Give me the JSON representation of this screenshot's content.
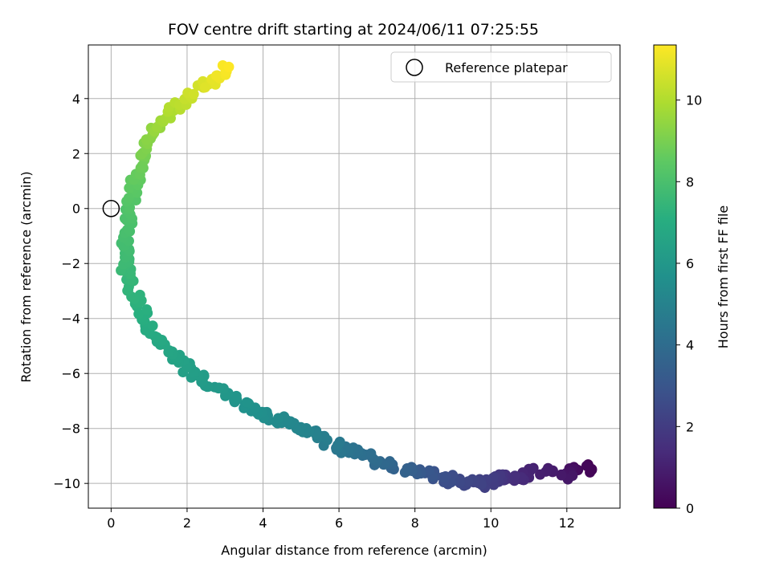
{
  "chart_data": {
    "type": "scatter",
    "title": "FOV centre drift starting at 2024/06/11 07:25:55",
    "xlabel": "Angular distance from reference (arcmin)",
    "ylabel": "Rotation from reference (arcmin)",
    "xlim": [
      -0.6,
      13.4
    ],
    "ylim": [
      -10.9,
      5.95
    ],
    "xticks": [
      0,
      2,
      4,
      6,
      8,
      10,
      12
    ],
    "yticks": [
      -10,
      -8,
      -6,
      -4,
      -2,
      0,
      2,
      4
    ],
    "xtick_labels": [
      "0",
      "2",
      "4",
      "6",
      "8",
      "10",
      "12"
    ],
    "ytick_labels": [
      "−10",
      "−8",
      "−6",
      "−4",
      "−2",
      "0",
      "2",
      "4"
    ],
    "grid": true,
    "colorbar": {
      "label": "Hours from first FF file",
      "colormap": "viridis",
      "range": [
        0,
        11.35
      ],
      "ticks": [
        0,
        2,
        4,
        6,
        8,
        10
      ],
      "tick_labels": [
        "0",
        "2",
        "4",
        "6",
        "8",
        "10"
      ]
    },
    "legend": {
      "position": "top-right",
      "entries": [
        {
          "label": "Reference platepar",
          "marker": "open-circle",
          "x": 0,
          "y": 0
        }
      ]
    },
    "path": [
      [
        12.7,
        -9.4,
        0.0
      ],
      [
        12.2,
        -9.5,
        0.35
      ],
      [
        12.0,
        -9.7,
        0.7
      ],
      [
        11.1,
        -9.5,
        1.05
      ],
      [
        10.7,
        -9.9,
        1.4
      ],
      [
        10.3,
        -9.7,
        1.75
      ],
      [
        9.9,
        -10.0,
        2.1
      ],
      [
        9.6,
        -10.0,
        2.3
      ],
      [
        9.0,
        -9.9,
        2.55
      ],
      [
        8.5,
        -9.7,
        2.9
      ],
      [
        8.0,
        -9.6,
        3.3
      ],
      [
        7.5,
        -9.4,
        3.6
      ],
      [
        7.0,
        -9.2,
        3.9
      ],
      [
        6.5,
        -8.9,
        4.2
      ],
      [
        6.0,
        -8.7,
        4.5
      ],
      [
        5.5,
        -8.3,
        4.8
      ],
      [
        5.0,
        -8.0,
        5.1
      ],
      [
        4.5,
        -7.7,
        5.3
      ],
      [
        4.0,
        -7.5,
        5.55
      ],
      [
        3.5,
        -7.1,
        5.75
      ],
      [
        3.0,
        -6.8,
        5.95
      ],
      [
        2.5,
        -6.3,
        6.15
      ],
      [
        2.0,
        -5.8,
        6.35
      ],
      [
        1.6,
        -5.3,
        6.55
      ],
      [
        1.3,
        -4.8,
        6.75
      ],
      [
        1.0,
        -4.3,
        6.95
      ],
      [
        0.8,
        -3.7,
        7.15
      ],
      [
        0.55,
        -3.0,
        7.35
      ],
      [
        0.4,
        -2.3,
        7.55
      ],
      [
        0.35,
        -1.6,
        7.75
      ],
      [
        0.4,
        -0.8,
        7.95
      ],
      [
        0.5,
        0.0,
        8.15
      ],
      [
        0.6,
        0.8,
        8.45
      ],
      [
        0.75,
        1.6,
        8.8
      ],
      [
        0.95,
        2.4,
        9.2
      ],
      [
        1.3,
        3.1,
        9.65
      ],
      [
        1.7,
        3.7,
        10.1
      ],
      [
        2.2,
        4.3,
        10.55
      ],
      [
        2.7,
        4.7,
        10.95
      ],
      [
        3.1,
        5.15,
        11.35
      ]
    ],
    "points_per_segment": 9,
    "scatter_spread": [
      0.28,
      0.32
    ]
  }
}
